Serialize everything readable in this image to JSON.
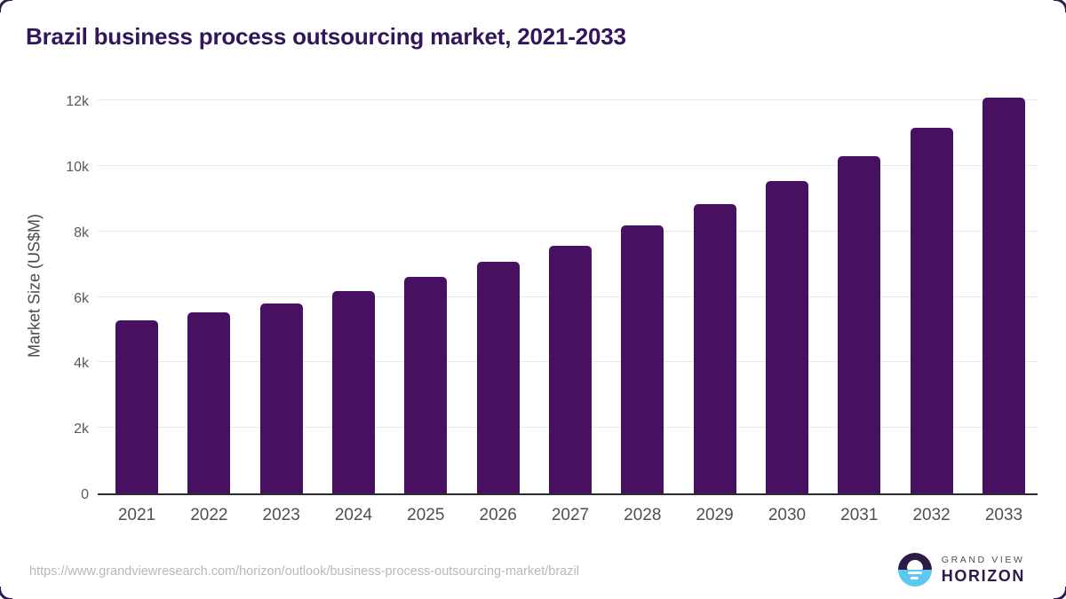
{
  "title": "Brazil business process outsourcing market, 2021-2033",
  "y_axis": {
    "label": "Market Size (US$M)",
    "tick_labels": [
      "0",
      "2k",
      "4k",
      "6k",
      "8k",
      "10k",
      "12k"
    ]
  },
  "footer": {
    "source_url": "https://www.grandviewresearch.com/horizon/outlook/business-process-outsourcing-market/brazil",
    "logo_line1": "GRAND VIEW",
    "logo_line2": "HORIZON"
  },
  "colors": {
    "bar": "#481060",
    "title": "#33155c",
    "gridline": "#e8e8e8",
    "axis_line": "#2b2b2b",
    "tick_text": "#595959",
    "xlabel_text": "#4f4f4f",
    "url_text": "#b8b8b8",
    "logo_purple": "#2e1a47",
    "logo_blue": "#5ac8f2"
  },
  "chart_data": {
    "type": "bar",
    "title": "Brazil business process outsourcing market, 2021-2033",
    "xlabel": "",
    "ylabel": "Market Size (US$M)",
    "categories": [
      "2021",
      "2022",
      "2023",
      "2024",
      "2025",
      "2026",
      "2027",
      "2028",
      "2029",
      "2030",
      "2031",
      "2032",
      "2033"
    ],
    "values": [
      5270,
      5530,
      5790,
      6180,
      6600,
      7060,
      7570,
      8180,
      8820,
      9540,
      10290,
      11160,
      12080
    ],
    "yticks": [
      0,
      2000,
      4000,
      6000,
      8000,
      10000,
      12000
    ],
    "ylim": [
      0,
      12540
    ],
    "grid": "horizontal",
    "legend": "none",
    "bar_color": "#481060"
  }
}
